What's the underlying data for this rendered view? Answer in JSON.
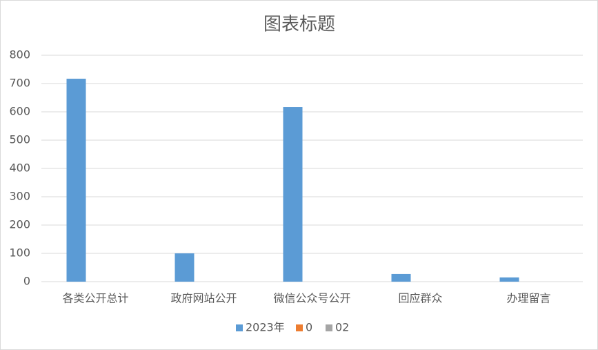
{
  "chart_data": {
    "type": "bar",
    "title": "图表标题",
    "categories": [
      "各类公开总计",
      "政府网站公开",
      "微信公众号公开",
      "回应群众",
      "办理留言"
    ],
    "series": [
      {
        "name": "2023年",
        "color": "#5b9bd5",
        "values": [
          717,
          100,
          617,
          27,
          15
        ]
      },
      {
        "name": "0",
        "color": "#ed7d31",
        "values": [
          0,
          0,
          0,
          0,
          0
        ]
      },
      {
        "name": "02",
        "color": "#a5a5a5",
        "values": [
          0,
          0,
          0,
          0,
          0
        ]
      }
    ],
    "ylim": [
      0,
      800
    ],
    "yticks": [
      0,
      100,
      200,
      300,
      400,
      500,
      600,
      700,
      800
    ],
    "grid": true,
    "legend": "bottom"
  }
}
